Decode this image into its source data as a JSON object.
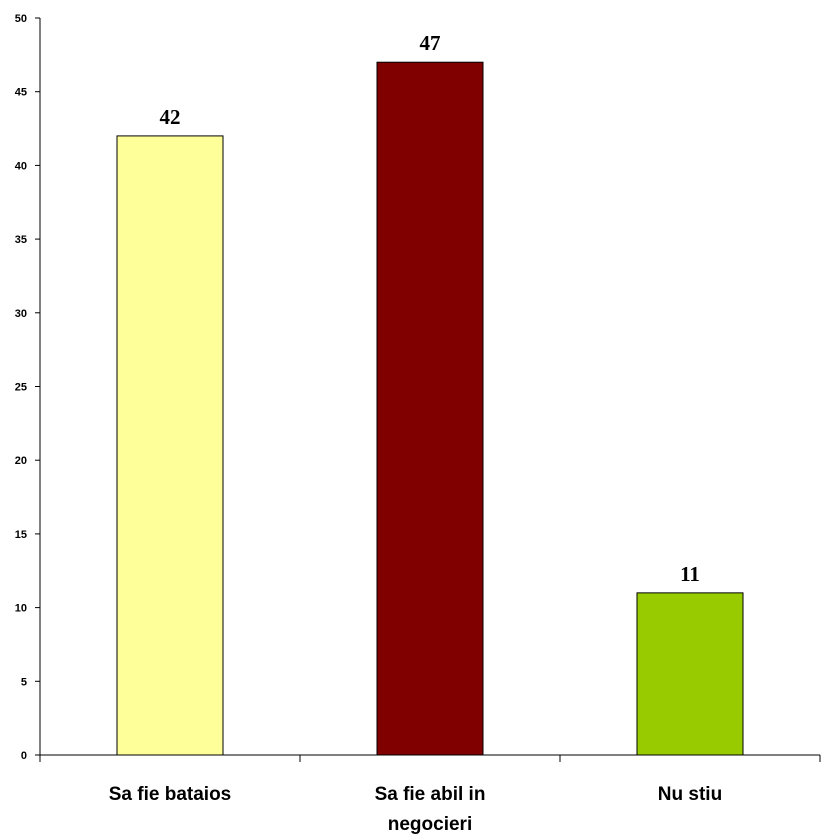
{
  "chart_data": {
    "type": "bar",
    "title": "",
    "xlabel": "",
    "ylabel": "",
    "categories": [
      [
        "Sa fie bataios"
      ],
      [
        "Sa fie abil in",
        "negocieri"
      ],
      [
        "Nu stiu"
      ]
    ],
    "values": [
      42,
      47,
      11
    ],
    "value_labels": [
      "42",
      "47",
      "11"
    ],
    "colors": [
      "#ffff99",
      "#800000",
      "#99cc00"
    ],
    "ylim": [
      0,
      50
    ],
    "y_ticks": [
      0,
      5,
      10,
      15,
      20,
      25,
      30,
      35,
      40,
      45,
      50
    ],
    "y_tick_labels": [
      "0",
      "5",
      "10",
      "15",
      "20",
      "25",
      "30",
      "35",
      "40",
      "45",
      "50"
    ],
    "grid": false,
    "legend": "none"
  }
}
